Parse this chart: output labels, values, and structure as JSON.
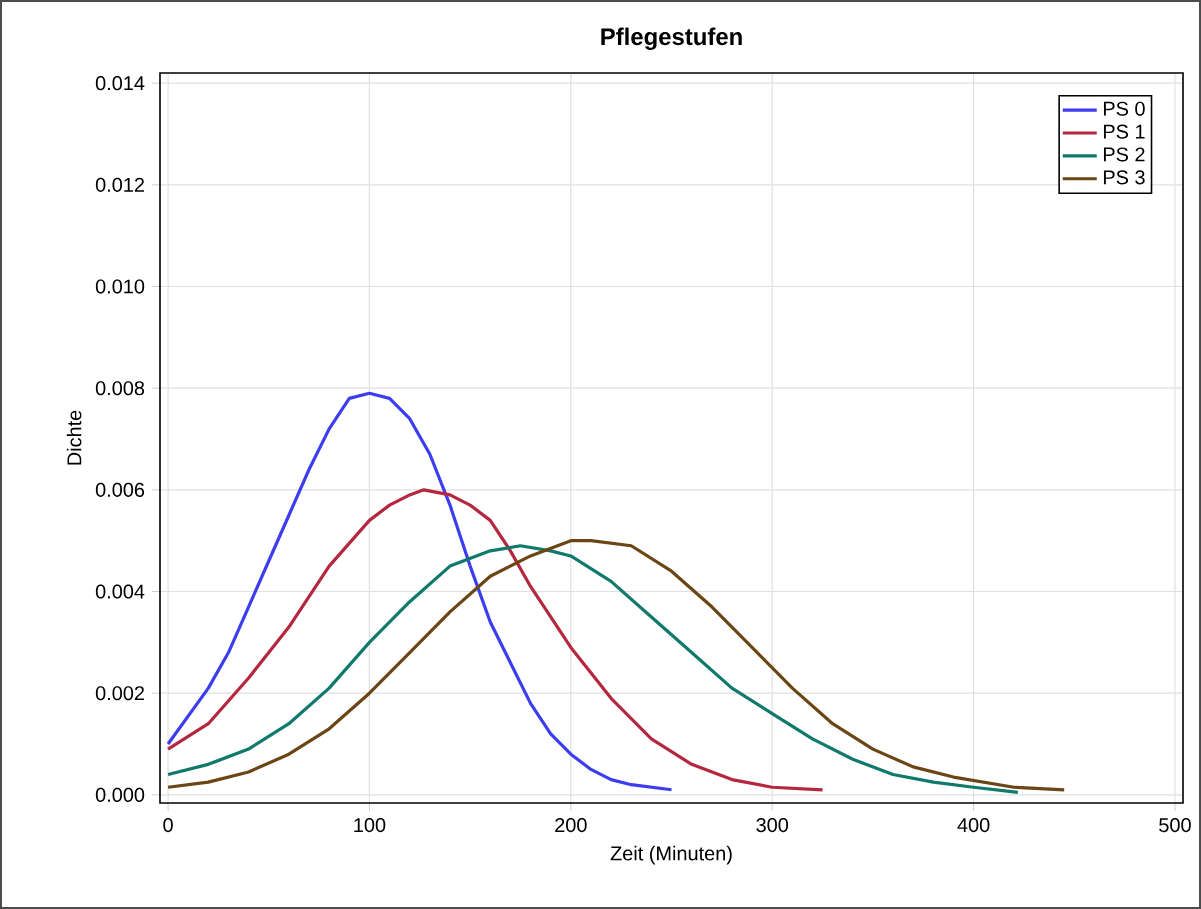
{
  "chart_data": {
    "type": "line",
    "title": "Pflegestufen",
    "xlabel": "Zeit (Minuten)",
    "ylabel": "Dichte",
    "xlim": [
      -4,
      504
    ],
    "ylim": [
      -0.00016,
      0.0142
    ],
    "xticks": [
      0,
      100,
      200,
      300,
      400,
      500
    ],
    "yticks": [
      {
        "value": 0,
        "label": "0.000"
      },
      {
        "value": 0.002,
        "label": "0.002"
      },
      {
        "value": 0.004,
        "label": "0.004"
      },
      {
        "value": 0.006,
        "label": "0.006"
      },
      {
        "value": 0.008,
        "label": "0.008"
      },
      {
        "value": 0.01,
        "label": "0.010"
      },
      {
        "value": 0.012,
        "label": "0.012"
      },
      {
        "value": 0.014,
        "label": "0.014"
      }
    ],
    "grid": true,
    "legend": "top right",
    "marker": "none",
    "line_style": "solid",
    "series": [
      {
        "name": "PS 0",
        "color": "#3d3df0",
        "x": [
          0,
          20,
          30,
          40,
          50,
          60,
          70,
          80,
          90,
          100,
          110,
          120,
          130,
          140,
          150,
          160,
          170,
          180,
          190,
          200,
          210,
          220,
          230,
          250
        ],
        "values": [
          0.001,
          0.0021,
          0.0028,
          0.0037,
          0.0046,
          0.0055,
          0.0064,
          0.0072,
          0.0078,
          0.0079,
          0.0078,
          0.0074,
          0.0067,
          0.0057,
          0.0045,
          0.0034,
          0.0026,
          0.0018,
          0.0012,
          0.0008,
          0.0005,
          0.0003,
          0.0002,
          0.0001
        ]
      },
      {
        "name": "PS 1",
        "color": "#b5263f",
        "x": [
          0,
          20,
          40,
          60,
          80,
          100,
          110,
          120,
          127,
          140,
          150,
          160,
          170,
          180,
          190,
          200,
          220,
          240,
          260,
          280,
          300,
          325
        ],
        "values": [
          0.0009,
          0.0014,
          0.0023,
          0.0033,
          0.0045,
          0.0054,
          0.0057,
          0.0059,
          0.006,
          0.0059,
          0.0057,
          0.0054,
          0.0048,
          0.0041,
          0.0035,
          0.0029,
          0.0019,
          0.0011,
          0.0006,
          0.0003,
          0.00015,
          0.0001
        ]
      },
      {
        "name": "PS 2",
        "color": "#0f7a6c",
        "x": [
          0,
          20,
          40,
          60,
          80,
          100,
          120,
          140,
          160,
          175,
          190,
          200,
          220,
          240,
          260,
          280,
          300,
          320,
          340,
          360,
          380,
          400,
          422
        ],
        "values": [
          0.0004,
          0.0006,
          0.0009,
          0.0014,
          0.0021,
          0.003,
          0.0038,
          0.0045,
          0.0048,
          0.0049,
          0.0048,
          0.0047,
          0.0042,
          0.0035,
          0.0028,
          0.0021,
          0.0016,
          0.0011,
          0.0007,
          0.0004,
          0.00025,
          0.00015,
          5e-05
        ]
      },
      {
        "name": "PS 3",
        "color": "#6b4513",
        "x": [
          0,
          20,
          40,
          60,
          80,
          100,
          120,
          140,
          160,
          180,
          200,
          210,
          230,
          250,
          270,
          290,
          310,
          330,
          350,
          370,
          390,
          420,
          445
        ],
        "values": [
          0.00015,
          0.00025,
          0.00045,
          0.0008,
          0.0013,
          0.002,
          0.0028,
          0.0036,
          0.0043,
          0.0047,
          0.005,
          0.005,
          0.0049,
          0.0044,
          0.0037,
          0.0029,
          0.0021,
          0.0014,
          0.0009,
          0.00055,
          0.00035,
          0.00015,
          0.0001
        ]
      }
    ]
  }
}
